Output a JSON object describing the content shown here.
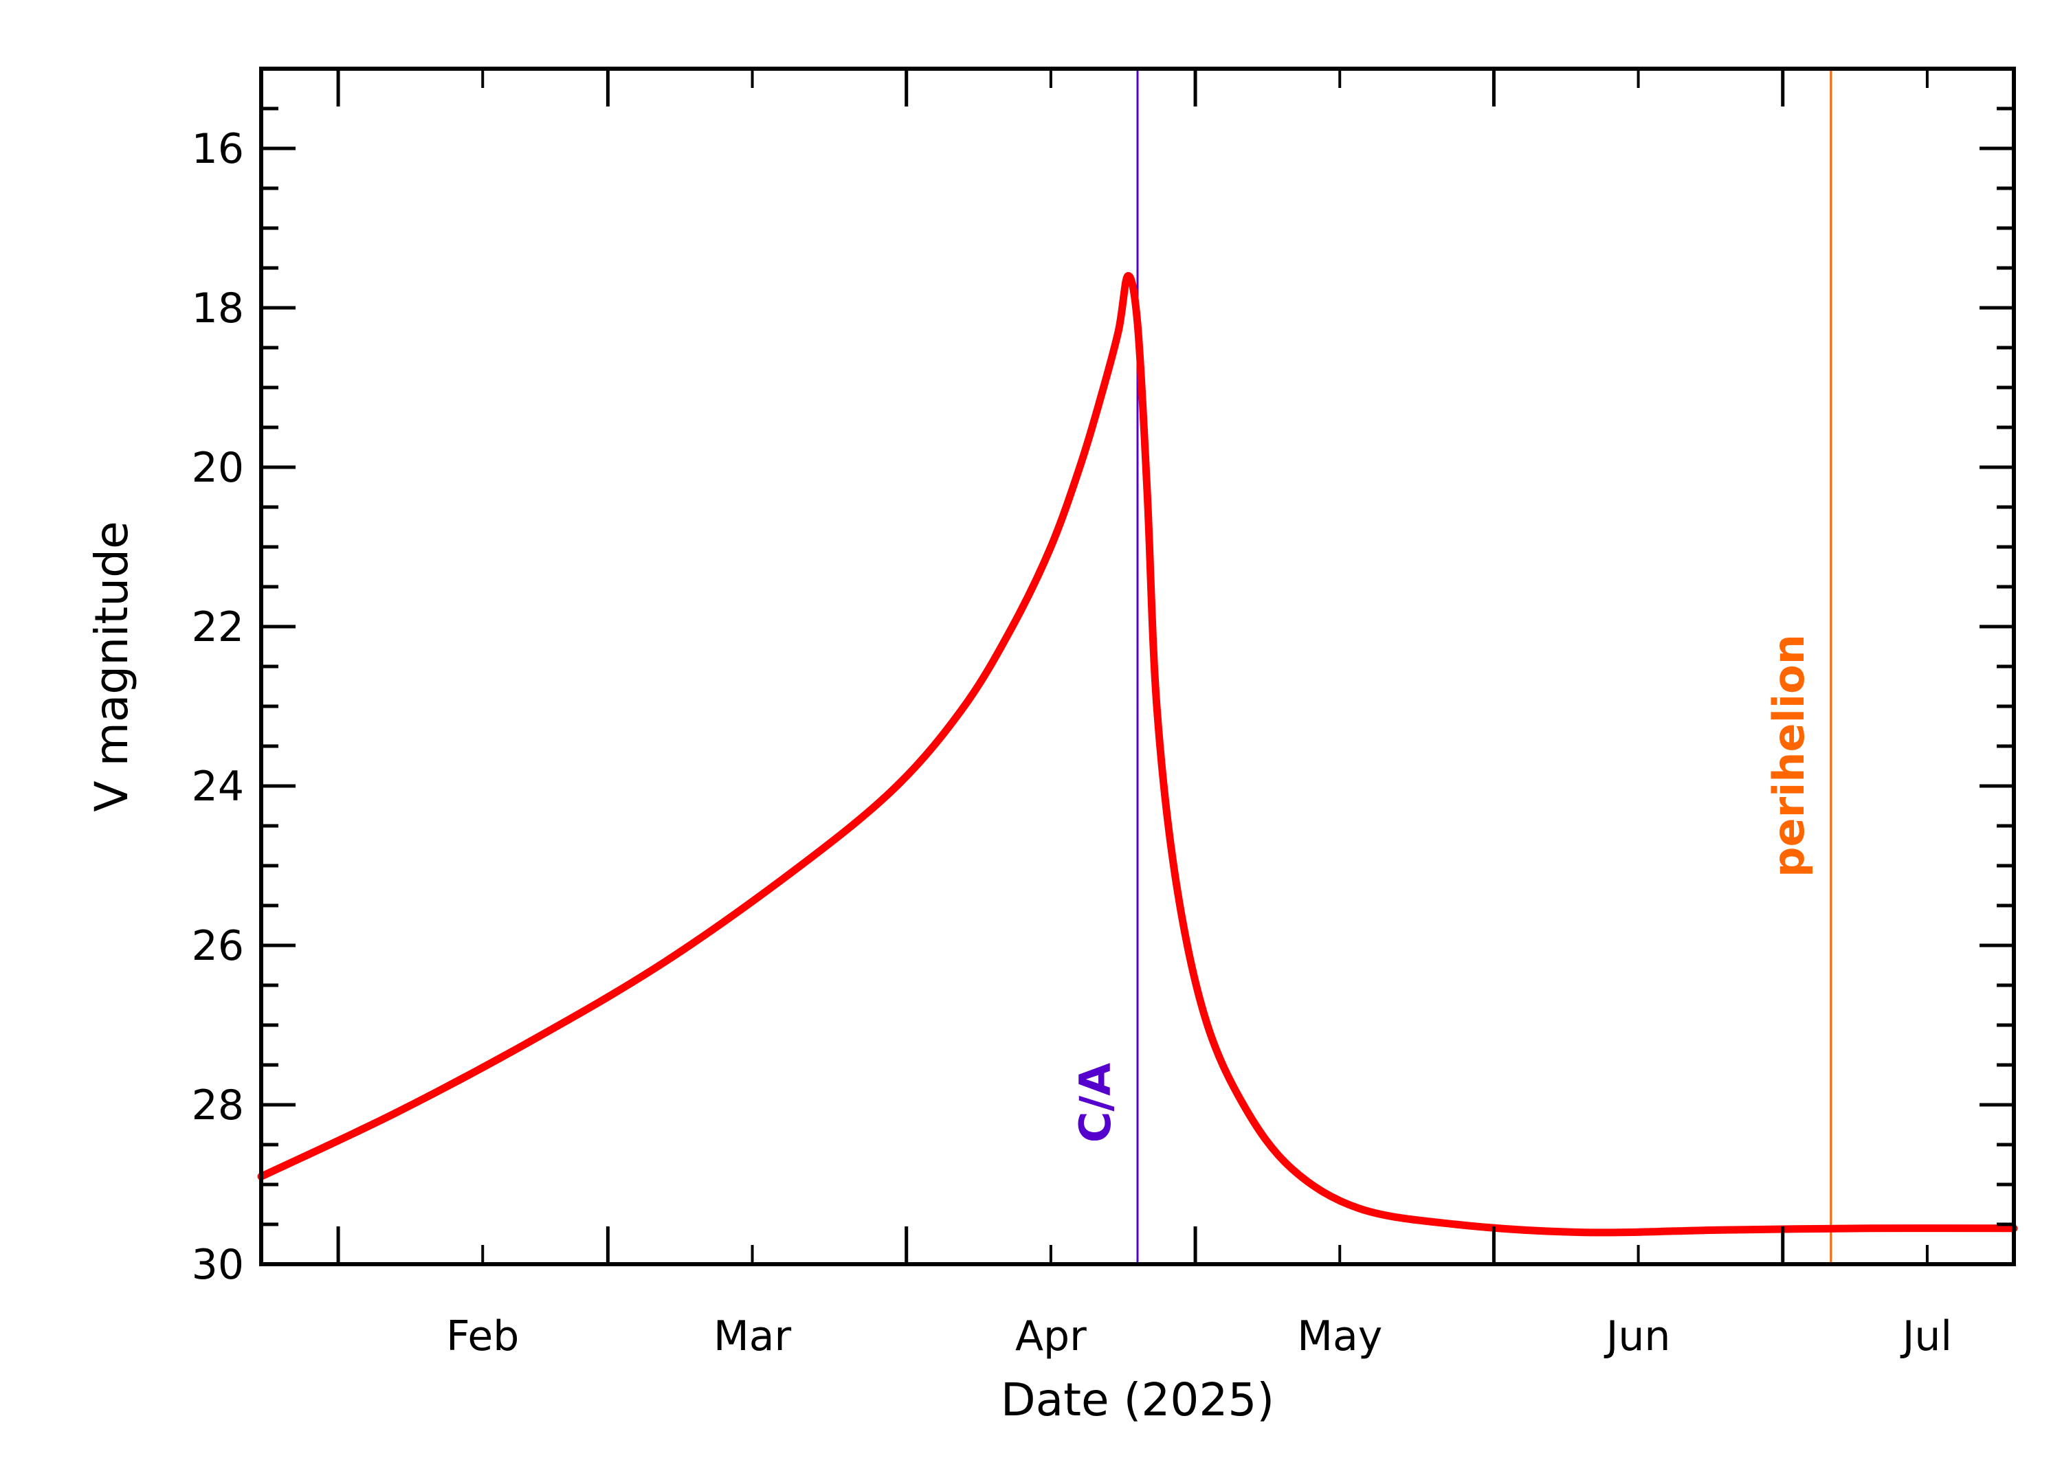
{
  "chart_data": {
    "type": "line",
    "title": "",
    "xlabel": "Date (2025)",
    "ylabel": "V magnitude",
    "x_range": [
      "2025-01-24",
      "2025-07-25"
    ],
    "ylim": [
      30,
      15
    ],
    "y_inverted": true,
    "grid": false,
    "x_tick_labels": [
      {
        "label": "Feb",
        "date": "2025-02-01"
      },
      {
        "label": "Mar",
        "date": "2025-03-01"
      },
      {
        "label": "Apr",
        "date": "2025-04-01"
      },
      {
        "label": "May",
        "date": "2025-05-01"
      },
      {
        "label": "Jun",
        "date": "2025-06-01"
      },
      {
        "label": "Jul",
        "date": "2025-07-01"
      }
    ],
    "y_tick_labels": [
      "16",
      "18",
      "20",
      "22",
      "24",
      "26",
      "28",
      "30"
    ],
    "series": [
      {
        "color": "#ff0000",
        "points": [
          [
            "2025-01-24",
            28.9
          ],
          [
            "2025-02-07",
            28.1
          ],
          [
            "2025-02-21",
            27.2
          ],
          [
            "2025-03-07",
            26.2
          ],
          [
            "2025-03-21",
            25.0
          ],
          [
            "2025-03-31",
            24.0
          ],
          [
            "2025-04-07",
            23.0
          ],
          [
            "2025-04-12",
            22.0
          ],
          [
            "2025-04-16",
            21.0
          ],
          [
            "2025-04-19",
            20.0
          ],
          [
            "2025-04-21",
            19.2
          ],
          [
            "2025-04-23",
            18.3
          ],
          [
            "2025-04-24",
            17.6
          ],
          [
            "2025-04-25",
            18.2
          ],
          [
            "2025-04-26",
            20.3
          ],
          [
            "2025-04-27",
            23.0
          ],
          [
            "2025-04-29",
            25.2
          ],
          [
            "2025-05-02",
            26.9
          ],
          [
            "2025-05-06",
            28.0
          ],
          [
            "2025-05-11",
            28.8
          ],
          [
            "2025-05-18",
            29.3
          ],
          [
            "2025-05-28",
            29.5
          ],
          [
            "2025-06-10",
            29.6
          ],
          [
            "2025-06-25",
            29.57
          ],
          [
            "2025-07-10",
            29.55
          ],
          [
            "2025-07-25",
            29.55
          ]
        ]
      }
    ],
    "markers": [
      {
        "label": "C/A",
        "date": "2025-04-25",
        "color": "#5500cc"
      },
      {
        "label": "perihelion",
        "date": "2025-07-06",
        "color": "#ff6600"
      }
    ]
  }
}
